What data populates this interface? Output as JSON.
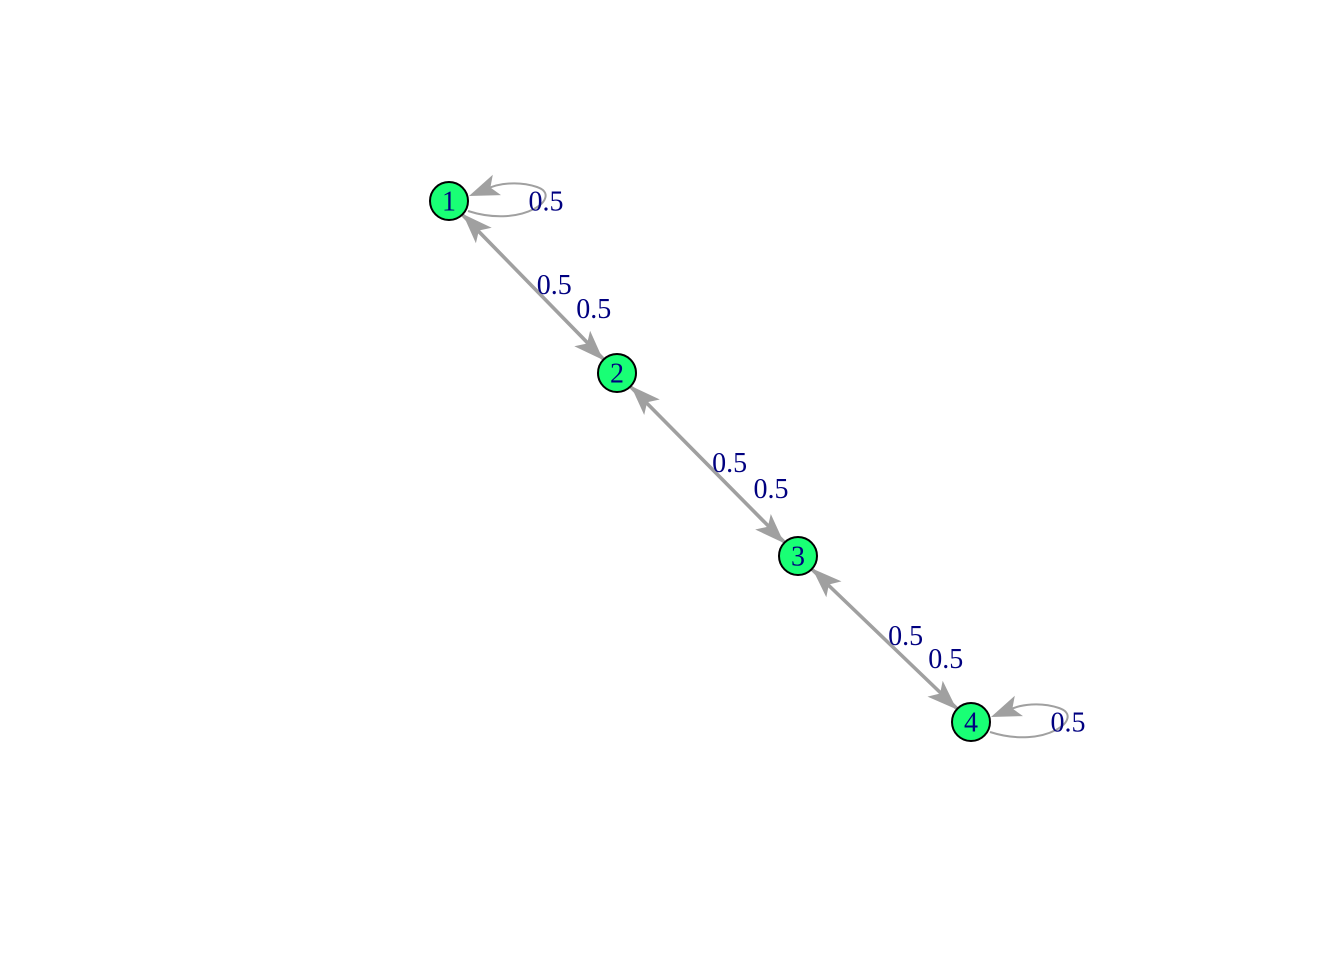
{
  "graph": {
    "directed": true,
    "colors": {
      "node_fill": "#00ff66",
      "node_stroke": "#000000",
      "edge": "#a0a0a0",
      "label": "#000080"
    },
    "nodes": [
      {
        "id": "n1",
        "label": "1"
      },
      {
        "id": "n2",
        "label": "2"
      },
      {
        "id": "n3",
        "label": "3"
      },
      {
        "id": "n4",
        "label": "4"
      }
    ],
    "edges": [
      {
        "id": "e11",
        "from": "1",
        "to": "1",
        "label": "0.5"
      },
      {
        "id": "e12",
        "from": "1",
        "to": "2",
        "label": "0.5"
      },
      {
        "id": "e21",
        "from": "2",
        "to": "1",
        "label": "0.5"
      },
      {
        "id": "e23",
        "from": "2",
        "to": "3",
        "label": "0.5"
      },
      {
        "id": "e32",
        "from": "3",
        "to": "2",
        "label": "0.5"
      },
      {
        "id": "e34",
        "from": "3",
        "to": "4",
        "label": "0.5"
      },
      {
        "id": "e43",
        "from": "4",
        "to": "3",
        "label": "0.5"
      },
      {
        "id": "e44",
        "from": "4",
        "to": "4",
        "label": "0.5"
      }
    ]
  }
}
